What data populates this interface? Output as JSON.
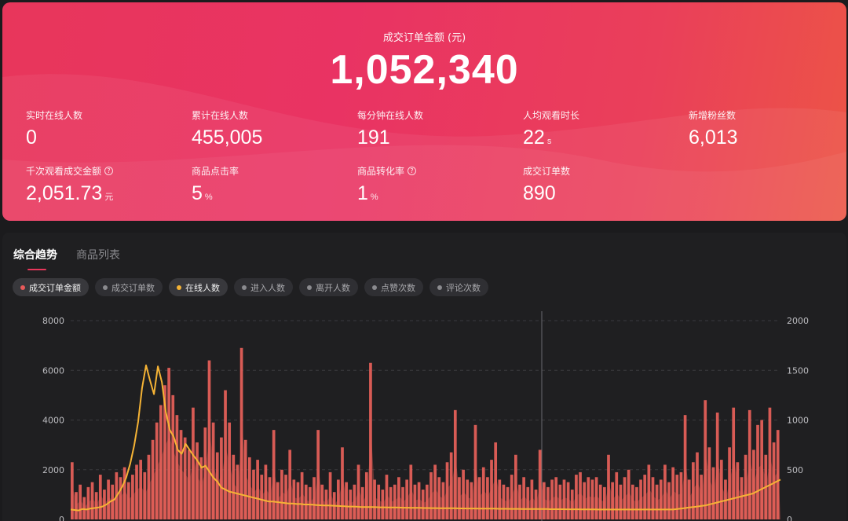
{
  "hero": {
    "title": "成交订单金额 (元)",
    "value": "1,052,340"
  },
  "metrics": [
    {
      "label": "实时在线人数",
      "value": "0",
      "unit": "",
      "help": false
    },
    {
      "label": "累计在线人数",
      "value": "455,005",
      "unit": "",
      "help": false
    },
    {
      "label": "每分钟在线人数",
      "value": "191",
      "unit": "",
      "help": false
    },
    {
      "label": "人均观看时长",
      "value": "22",
      "unit": "s",
      "help": false
    },
    {
      "label": "新增粉丝数",
      "value": "6,013",
      "unit": "",
      "help": false
    },
    {
      "label": "千次观看成交金额",
      "value": "2,051.73",
      "unit": "元",
      "help": true
    },
    {
      "label": "商品点击率",
      "value": "5",
      "unit": "%",
      "help": false
    },
    {
      "label": "商品转化率",
      "value": "1",
      "unit": "%",
      "help": true
    },
    {
      "label": "成交订单数",
      "value": "890",
      "unit": "",
      "help": false
    }
  ],
  "tabs": [
    {
      "label": "综合趋势",
      "active": true
    },
    {
      "label": "商品列表",
      "active": false
    }
  ],
  "chips": [
    {
      "label": "成交订单金额",
      "color": "#e85a5a",
      "on": true
    },
    {
      "label": "成交订单数",
      "color": "#8a8a8e",
      "on": false
    },
    {
      "label": "在线人数",
      "color": "#f5b335",
      "on": true
    },
    {
      "label": "进入人数",
      "color": "#8a8a8e",
      "on": false
    },
    {
      "label": "离开人数",
      "color": "#8a8a8e",
      "on": false
    },
    {
      "label": "点赞次数",
      "color": "#8a8a8e",
      "on": false
    },
    {
      "label": "评论次数",
      "color": "#8a8a8e",
      "on": false
    }
  ],
  "chart_data": {
    "type": "bar",
    "left_axis": {
      "ticks": [
        "0",
        "2000",
        "4000",
        "6000",
        "8000"
      ],
      "range": [
        0,
        8000
      ]
    },
    "right_axis": {
      "ticks": [
        "0",
        "500",
        "1000",
        "1500",
        "2000"
      ],
      "range": [
        0,
        2000
      ]
    },
    "grid": true,
    "series": [
      {
        "type": "bar",
        "color": "#e8615a",
        "axis": "left",
        "values": [
          2300,
          1100,
          1400,
          900,
          1300,
          1500,
          1100,
          1800,
          1200,
          1600,
          1400,
          1900,
          1700,
          2100,
          1500,
          1800,
          2200,
          2400,
          1900,
          2600,
          3200,
          3900,
          4600,
          5400,
          6100,
          5000,
          4200,
          3600,
          3300,
          2800,
          4500,
          3100,
          2500,
          3700,
          6400,
          3900,
          2700,
          3300,
          5200,
          3900,
          2600,
          2200,
          6900,
          3200,
          2500,
          2000,
          2400,
          1800,
          2200,
          1700,
          3600,
          1500,
          2000,
          1800,
          2800,
          1600,
          1500,
          1900,
          1400,
          1300,
          1700,
          3600,
          1400,
          1200,
          1900,
          1100,
          1600,
          2900,
          1500,
          1200,
          1400,
          2200,
          1300,
          1900,
          6300,
          1600,
          1400,
          1200,
          1800,
          1300,
          1400,
          1700,
          1300,
          1600,
          2200,
          1400,
          1500,
          1200,
          1400,
          1900,
          2200,
          1700,
          1500,
          2300,
          2700,
          4400,
          1700,
          2000,
          1600,
          1500,
          3800,
          1700,
          2100,
          1700,
          2400,
          3100,
          1600,
          1400,
          1300,
          1800,
          2600,
          1400,
          1700,
          1300,
          1600,
          1200,
          2800,
          1500,
          1300,
          1600,
          1700,
          1400,
          1600,
          1500,
          1200,
          1800,
          1900,
          1500,
          1700,
          1600,
          1700,
          1400,
          1300,
          2600,
          1500,
          1900,
          1400,
          1700,
          2000,
          1400,
          1300,
          1600,
          1800,
          2200,
          1700,
          1400,
          1600,
          2200,
          1500,
          2100,
          1800,
          1900,
          4200,
          1600,
          2300,
          2700,
          1800,
          4800,
          2900,
          2100,
          4300,
          2400,
          1600,
          2900,
          4500,
          2300,
          1700,
          2600,
          4400,
          2800,
          3800,
          4000,
          2600,
          4500,
          3100,
          3600
        ]
      },
      {
        "type": "line",
        "color": "#f5b335",
        "axis": "right",
        "values": [
          100,
          95,
          90,
          105,
          100,
          110,
          115,
          120,
          130,
          150,
          180,
          200,
          260,
          330,
          420,
          560,
          740,
          980,
          1320,
          1550,
          1400,
          1260,
          1540,
          1380,
          1080,
          900,
          830,
          700,
          660,
          760,
          700,
          640,
          590,
          520,
          540,
          480,
          420,
          380,
          320,
          300,
          280,
          270,
          260,
          250,
          240,
          230,
          220,
          210,
          200,
          190,
          180,
          180,
          175,
          170,
          165,
          160,
          160,
          155,
          155,
          150,
          150,
          148,
          145,
          142,
          140,
          140,
          138,
          136,
          134,
          132,
          130,
          130,
          128,
          126,
          125,
          124,
          124,
          123,
          122,
          122,
          120,
          121,
          120,
          119,
          118,
          118,
          117,
          116,
          116,
          115,
          115,
          114,
          114,
          113,
          113,
          112,
          112,
          112,
          111,
          111,
          110,
          110,
          110,
          109,
          109,
          108,
          108,
          108,
          107,
          107,
          107,
          106,
          106,
          106,
          105,
          105,
          105,
          104,
          104,
          104,
          104,
          103,
          103,
          103,
          103,
          102,
          102,
          102,
          102,
          101,
          101,
          101,
          101,
          100,
          100,
          100,
          100,
          100,
          100,
          100,
          100,
          100,
          100,
          100,
          100,
          100,
          100,
          100,
          100,
          100,
          100,
          100,
          100,
          105,
          110,
          115,
          120,
          125,
          130,
          135,
          140,
          150,
          160,
          170,
          180,
          190,
          200,
          210,
          220,
          230,
          240,
          250,
          260,
          280,
          300,
          320,
          340,
          360,
          380,
          400
        ]
      }
    ]
  }
}
